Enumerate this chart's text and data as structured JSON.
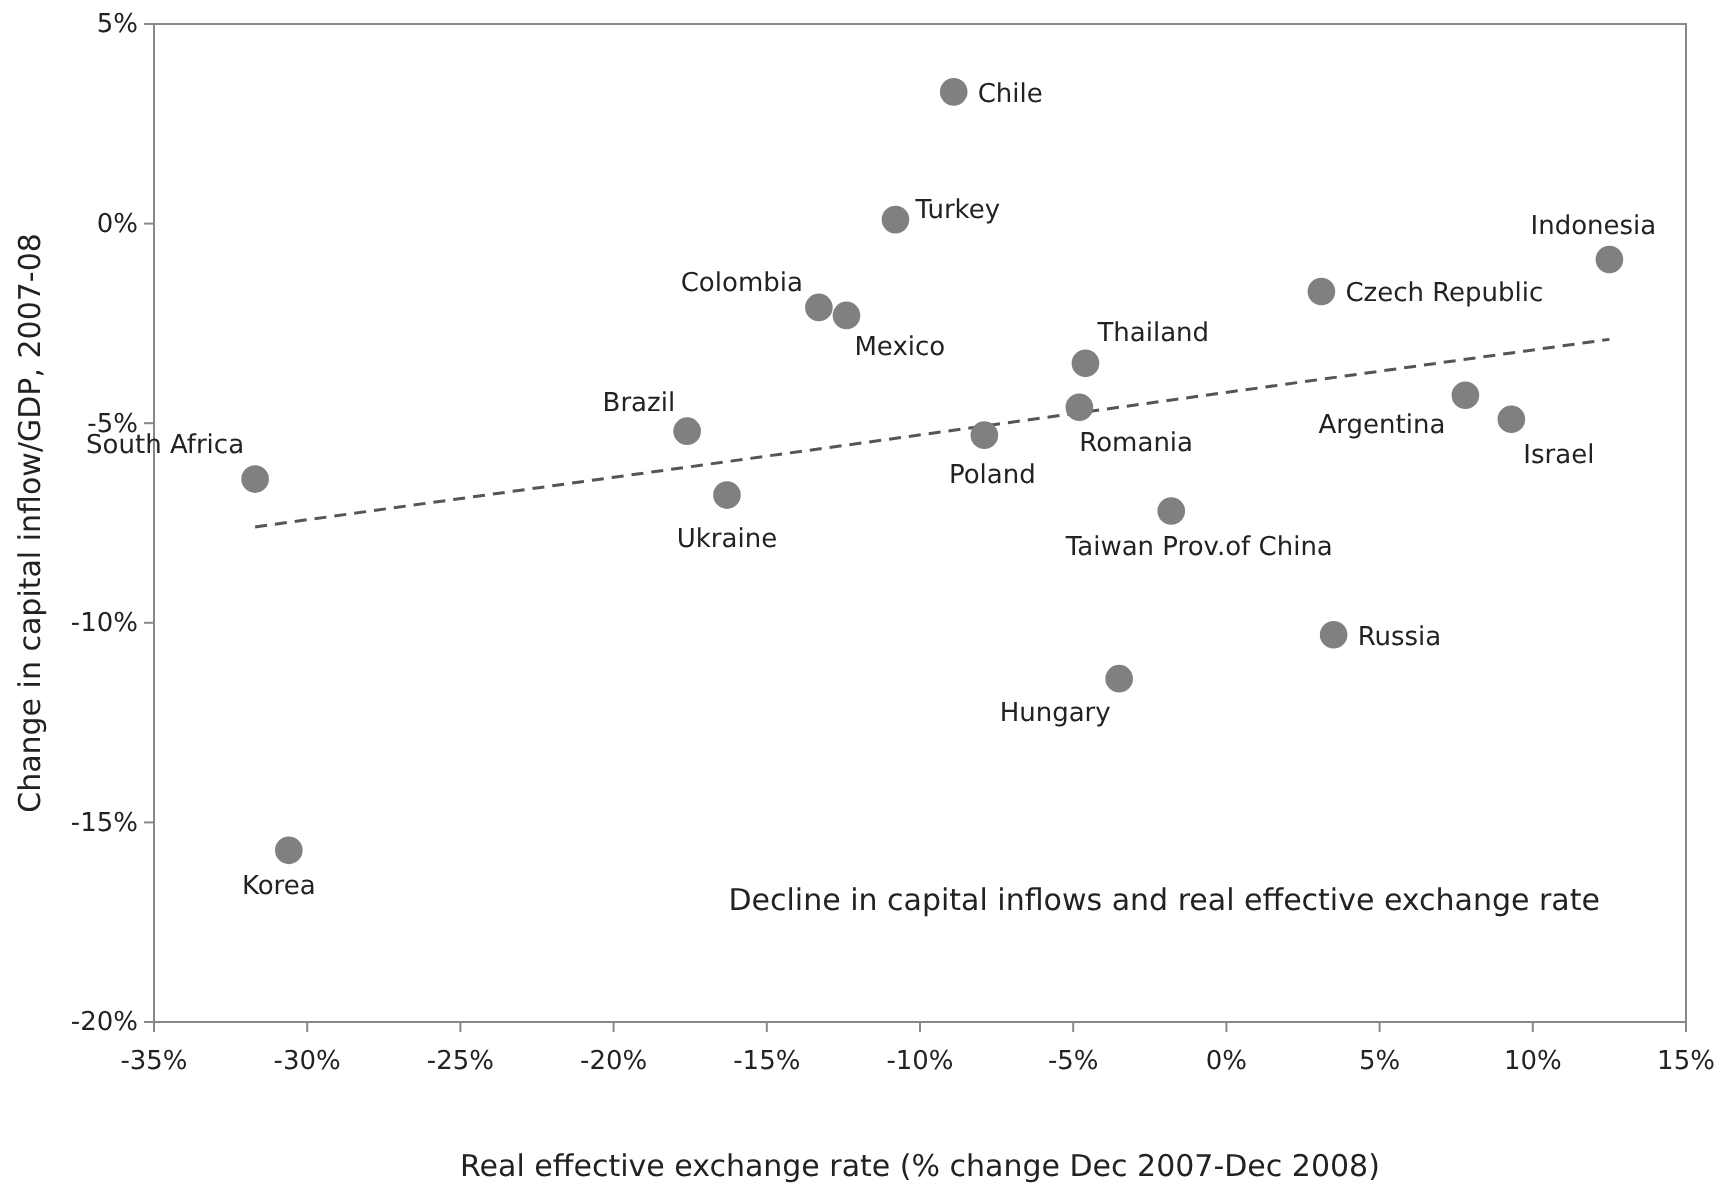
{
  "chart_data": {
    "type": "scatter",
    "xlabel": "Real effective exchange rate (% change Dec 2007-Dec 2008)",
    "ylabel": "Change in capital inflow/GDP, 2007-08",
    "xlim": [
      -35,
      15
    ],
    "xticks": [
      {
        "value": -35,
        "label": "-35%"
      },
      {
        "value": -30,
        "label": "-30%"
      },
      {
        "value": -25,
        "label": "-25%"
      },
      {
        "value": -20,
        "label": "-20%"
      },
      {
        "value": -15,
        "label": "-15%"
      },
      {
        "value": -10,
        "label": "-10%"
      },
      {
        "value": -5,
        "label": "-5%"
      },
      {
        "value": 0,
        "label": "0%"
      },
      {
        "value": 5,
        "label": "5%"
      },
      {
        "value": 10,
        "label": "10%"
      },
      {
        "value": 15,
        "label": "15%"
      }
    ],
    "ylim": [
      -20,
      5
    ],
    "yticks": [
      {
        "value": -20,
        "label": "-20%"
      },
      {
        "value": -15,
        "label": "-15%"
      },
      {
        "value": -10,
        "label": "-10%"
      },
      {
        "value": -5,
        "label": "-5%"
      },
      {
        "value": 0,
        "label": "0%"
      },
      {
        "value": 5,
        "label": "5%"
      }
    ],
    "grid": false,
    "marker": "circle",
    "series": [
      {
        "color": "#808080",
        "x": [
          -8.9,
          -10.8,
          -13.3,
          -12.4,
          -17.6,
          -16.3,
          -31.7,
          -30.6,
          -7.9,
          -4.6,
          -4.8,
          -1.8,
          -3.5,
          3.1,
          3.5,
          7.8,
          9.3,
          12.5
        ],
        "values": [
          3.3,
          0.1,
          -2.1,
          -2.3,
          -5.2,
          -6.8,
          -6.4,
          -15.7,
          -5.3,
          -3.5,
          -4.6,
          -7.2,
          -11.4,
          -1.7,
          -10.3,
          -4.3,
          -4.9,
          -0.9
        ]
      },
      {
        "type": "line",
        "color": "#555555",
        "line_style": "dashed",
        "marker": "none",
        "x": [
          -31.7,
          12.5
        ],
        "values": [
          -7.6,
          -2.9
        ]
      }
    ],
    "annotations": [
      {
        "text": "Chile",
        "x": -8.9,
        "y": 3.3
      },
      {
        "text": "Turkey",
        "x": -10.8,
        "y": 0.1
      },
      {
        "text": "Colombia",
        "x": -13.3,
        "y": -2.1
      },
      {
        "text": "Mexico",
        "x": -12.4,
        "y": -2.3
      },
      {
        "text": "Brazil",
        "x": -17.6,
        "y": -5.2
      },
      {
        "text": "Ukraine",
        "x": -16.3,
        "y": -6.8
      },
      {
        "text": "South Africa",
        "x": -31.7,
        "y": -6.4
      },
      {
        "text": "Korea",
        "x": -30.6,
        "y": -15.7
      },
      {
        "text": "Poland",
        "x": -7.9,
        "y": -5.3
      },
      {
        "text": "Thailand",
        "x": -4.6,
        "y": -3.5
      },
      {
        "text": "Romania",
        "x": -4.8,
        "y": -4.6
      },
      {
        "text": "Taiwan Prov.of China",
        "x": -1.8,
        "y": -7.2
      },
      {
        "text": "Hungary",
        "x": -3.5,
        "y": -11.4
      },
      {
        "text": "Czech Republic",
        "x": 3.1,
        "y": -1.7
      },
      {
        "text": "Russia",
        "x": 3.5,
        "y": -10.3
      },
      {
        "text": "Argentina",
        "x": 7.8,
        "y": -4.3
      },
      {
        "text": "Israel",
        "x": 9.3,
        "y": -4.9
      },
      {
        "text": "Indonesia",
        "x": 12.5,
        "y": -0.9
      },
      "Decline in capital inflows and real effective exchange rate"
    ]
  }
}
